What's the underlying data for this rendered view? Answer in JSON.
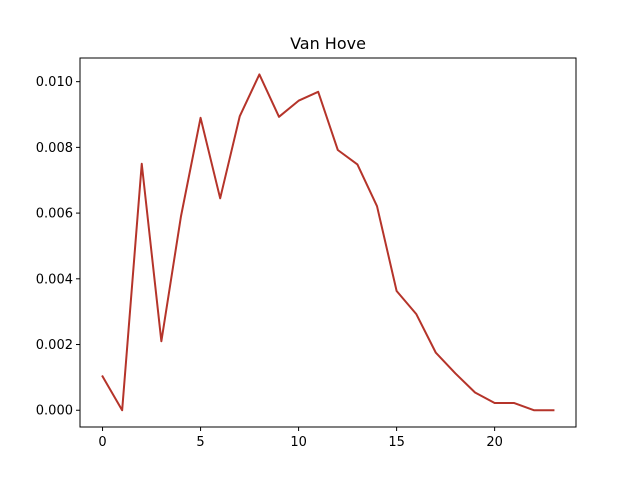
{
  "chart_data": {
    "type": "line",
    "title": "Van Hove",
    "xlabel": "",
    "ylabel": "",
    "xlim": [
      -1.15,
      24.15
    ],
    "ylim": [
      -0.00051,
      0.01072
    ],
    "x_ticks": [
      0,
      5,
      10,
      15,
      20
    ],
    "x_tick_labels": [
      "0",
      "5",
      "10",
      "15",
      "20"
    ],
    "y_ticks": [
      0.0,
      0.002,
      0.004,
      0.006,
      0.008,
      0.01
    ],
    "y_tick_labels": [
      "0.000",
      "0.002",
      "0.004",
      "0.006",
      "0.008",
      "0.010"
    ],
    "grid": false,
    "legend": "none",
    "series": [
      {
        "color": "#b5342a",
        "x": [
          0,
          1,
          2,
          3,
          4,
          5,
          6,
          7,
          8,
          9,
          10,
          11,
          12,
          13,
          14,
          15,
          16,
          17,
          18,
          19,
          20,
          21,
          22,
          23
        ],
        "y": [
          0.00103,
          0.0,
          0.0075,
          0.0021,
          0.0059,
          0.0089,
          0.00645,
          0.00895,
          0.01022,
          0.00893,
          0.00942,
          0.00969,
          0.00792,
          0.00748,
          0.00621,
          0.00363,
          0.00293,
          0.00175,
          0.00112,
          0.00054,
          0.00022,
          0.00022,
          0.0,
          0.0
        ]
      }
    ]
  }
}
